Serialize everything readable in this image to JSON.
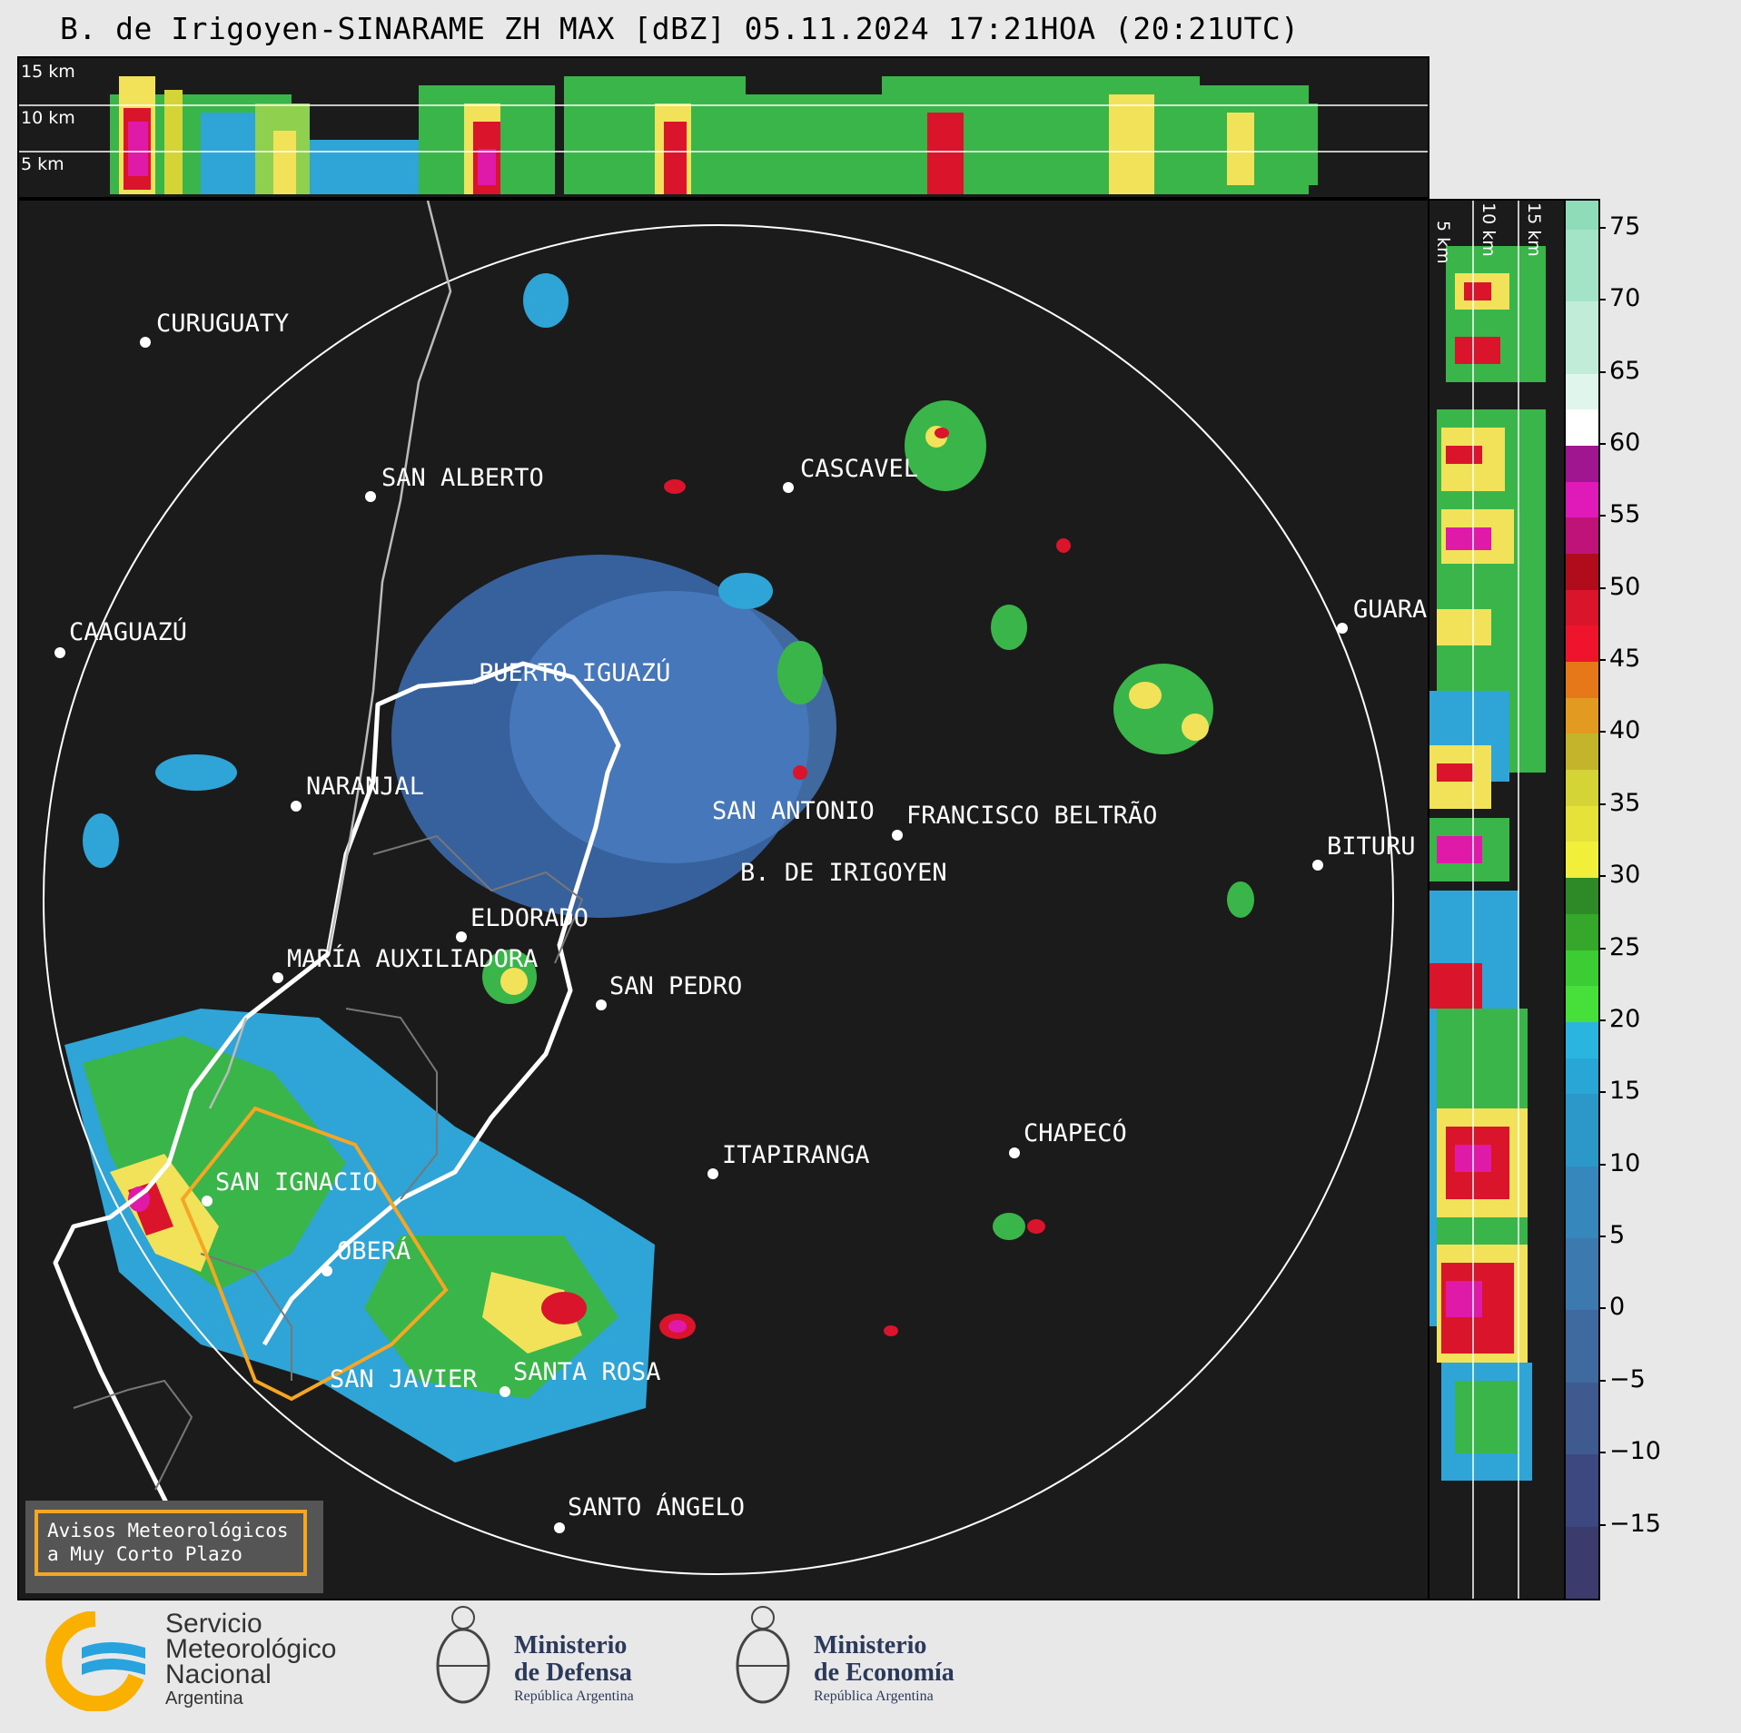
{
  "title": "B. de Irigoyen-SINARAME ZH MAX [dBZ] 05.11.2024 17:21HOA (20:21UTC)",
  "cross_section": {
    "top_labels": [
      "15 km",
      "10 km",
      "5 km"
    ],
    "right_labels": [
      "5 km",
      "10 km",
      "15 km"
    ]
  },
  "cities": [
    {
      "name": "CURUGUATY"
    },
    {
      "name": "SAN ALBERTO"
    },
    {
      "name": "CASCAVEL"
    },
    {
      "name": "CAAGUAZÚ"
    },
    {
      "name": "GUARA"
    },
    {
      "name": "PUERTO IGUAZÚ"
    },
    {
      "name": "NARANJAL"
    },
    {
      "name": "SAN ANTONIO"
    },
    {
      "name": "FRANCISCO BELTRÃO"
    },
    {
      "name": "BITURU"
    },
    {
      "name": "B. DE IRIGOYEN"
    },
    {
      "name": "ELDORADO"
    },
    {
      "name": "MARÍA AUXILIADORA"
    },
    {
      "name": "SAN PEDRO"
    },
    {
      "name": "CHAPECÓ"
    },
    {
      "name": "ITAPIRANGA"
    },
    {
      "name": "SAN IGNACIO"
    },
    {
      "name": "OBERÁ"
    },
    {
      "name": "SAN JAVIER"
    },
    {
      "name": "SANTA ROSA"
    },
    {
      "name": "SANTO ÁNGELO"
    }
  ],
  "colorbar": {
    "unit": "dBZ",
    "ticks": [
      "75",
      "70",
      "65",
      "60",
      "55",
      "50",
      "45",
      "40",
      "35",
      "30",
      "25",
      "20",
      "15",
      "10",
      "5",
      "0",
      "−5",
      "−10",
      "−15"
    ],
    "range": [
      -20,
      77
    ]
  },
  "aviso": {
    "line1": "Avisos Meteorológicos",
    "line2": "a Muy Corto Plazo"
  },
  "logos": {
    "smn": {
      "line1": "Servicio",
      "line2": "Meteorológico",
      "line3": "Nacional",
      "line4": "Argentina"
    },
    "defensa": {
      "line1": "Ministerio",
      "line2": "de Defensa",
      "line3": "República Argentina"
    },
    "economia": {
      "line1": "Ministerio",
      "line2": "de Economía",
      "line3": "República Argentina"
    }
  },
  "colors": {
    "background": "#1b1b1b",
    "accent_orange": "#f5a623",
    "smn_blue": "#29a3dd",
    "smn_yellow": "#f9b000"
  }
}
